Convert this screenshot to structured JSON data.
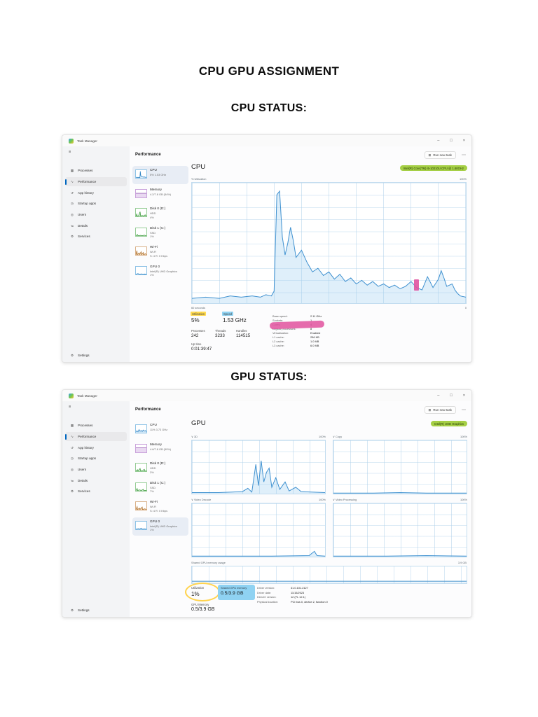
{
  "page": {
    "title": "CPU GPU ASSIGNMENT",
    "cpu_heading": "CPU STATUS:",
    "gpu_heading": "GPU STATUS:"
  },
  "colors": {
    "accent_blue": "#0067c0",
    "chart_blue": "#3f91d0",
    "highlight_green": "#a5cf45",
    "highlight_yellow": "#ffd94d",
    "highlight_blue": "#8fd2f2",
    "highlight_pink": "#e0519e"
  },
  "chrome": {
    "app": "Task Manager",
    "min": "–",
    "max": "□",
    "close": "×",
    "menu": "≡",
    "header": "Performance",
    "run_icon": "⊞",
    "run_label": "Run new task",
    "more": "⋯",
    "settings_icon": "⚙",
    "settings_label": "Settings",
    "chevron": "∨"
  },
  "nav": {
    "items": [
      {
        "icon": "▦",
        "label": "Processes"
      },
      {
        "icon": "∿",
        "label": "Performance"
      },
      {
        "icon": "↺",
        "label": "App history"
      },
      {
        "icon": "◷",
        "label": "Startup apps"
      },
      {
        "icon": "◎",
        "label": "Users"
      },
      {
        "icon": "≔",
        "label": "Details"
      },
      {
        "icon": "⚙",
        "label": "Services"
      }
    ]
  },
  "tm1": {
    "tiles": [
      {
        "name": "CPU",
        "l1": "5% 1.53 GHz",
        "l2": ""
      },
      {
        "name": "Memory",
        "l1": "4.2/7.8 GB (54%)",
        "l2": ""
      },
      {
        "name": "Disk 0 (D:)",
        "l1": "HDD",
        "l2": "4%"
      },
      {
        "name": "Disk 1 (C:)",
        "l1": "SSD",
        "l2": "1%"
      },
      {
        "name": "Wi-Fi",
        "l1": "Wi-Fi",
        "l2": "S: 4 R: 0 Kbps"
      },
      {
        "name": "GPU 0",
        "l1": "Intel(R) UHD Graphics",
        "l2": "1%"
      }
    ],
    "main": {
      "title": "CPU",
      "device": "Intel(R) Core(TM) i5-10210U CPU @ 1.60GHz",
      "y_label": "% Utilization",
      "y_max": "100%",
      "x_left": "60 seconds",
      "x_right": "0",
      "stats": {
        "utilization_label": "Utilization",
        "utilization_value": "5%",
        "speed_label": "Speed",
        "speed_value": "1.53 GHz",
        "processes_label": "Processes",
        "processes_value": "242",
        "threads_label": "Threads",
        "threads_value": "3233",
        "handles_label": "Handles",
        "handles_value": "114515",
        "uptime_label": "Up time",
        "uptime_value": "0:01:39:47"
      },
      "details": [
        {
          "label": "Base speed:",
          "value": "2.11 GHz"
        },
        {
          "label": "Sockets:",
          "value": "1"
        },
        {
          "label": "Cores:",
          "value": "4"
        },
        {
          "label": "Logical processors:",
          "value": "8"
        },
        {
          "label": "Virtualization:",
          "value": "Enabled"
        },
        {
          "label": "L1 cache:",
          "value": "256 KB"
        },
        {
          "label": "L2 cache:",
          "value": "1.0 MB"
        },
        {
          "label": "L3 cache:",
          "value": "6.0 MB"
        }
      ]
    }
  },
  "tm2": {
    "tiles": [
      {
        "name": "CPU",
        "l1": "11% 3.73 GHz",
        "l2": ""
      },
      {
        "name": "Memory",
        "l1": "4.6/7.8 GB (59%)",
        "l2": ""
      },
      {
        "name": "Disk 0 (D:)",
        "l1": "HDD",
        "l2": "3%"
      },
      {
        "name": "Disk 1 (C:)",
        "l1": "SSD",
        "l2": "7%"
      },
      {
        "name": "Wi-Fi",
        "l1": "Wi-Fi",
        "l2": "S: 4 R: 0 Kbps"
      },
      {
        "name": "GPU 0",
        "l1": "Intel(R) UHD Graphics",
        "l2": "1%"
      }
    ],
    "main": {
      "title": "GPU",
      "device": "Intel(R) UHD Graphics",
      "quadrants": [
        {
          "label": "3D",
          "scale": "100%"
        },
        {
          "label": "Copy",
          "scale": "100%"
        },
        {
          "label": "Video Decode",
          "scale": "100%"
        },
        {
          "label": "Video Processing",
          "scale": "100%"
        }
      ],
      "shared_label": "Shared GPU memory usage",
      "shared_scale": "3.9 GB",
      "stats": {
        "utilization_label": "Utilization",
        "utilization_value": "1%",
        "shared_mem_label": "Shared GPU memory",
        "shared_mem_value": "0.5/3.9 GB",
        "gpu_mem_label": "GPU Memory",
        "gpu_mem_value": "0.5/3.9 GB"
      },
      "details": [
        {
          "label": "Driver version:",
          "value": "31.0.101.2127"
        },
        {
          "label": "Driver date:",
          "value": "11/15/2023"
        },
        {
          "label": "DirectX version:",
          "value": "12 (FL 12.1)"
        },
        {
          "label": "Physical location:",
          "value": "PCI bus 0, device 2, function 0"
        }
      ]
    }
  },
  "charts": {
    "tm1_main": [
      [
        0,
        4
      ],
      [
        5,
        5
      ],
      [
        10,
        4
      ],
      [
        14,
        6
      ],
      [
        18,
        5
      ],
      [
        22,
        6
      ],
      [
        25,
        5
      ],
      [
        27,
        7
      ],
      [
        29,
        6
      ],
      [
        30,
        10
      ],
      [
        31,
        90
      ],
      [
        32,
        93
      ],
      [
        33,
        55
      ],
      [
        34,
        40
      ],
      [
        35,
        50
      ],
      [
        36,
        63
      ],
      [
        37,
        52
      ],
      [
        38,
        38
      ],
      [
        40,
        44
      ],
      [
        42,
        34
      ],
      [
        44,
        26
      ],
      [
        46,
        29
      ],
      [
        48,
        23
      ],
      [
        50,
        26
      ],
      [
        52,
        20
      ],
      [
        54,
        24
      ],
      [
        56,
        18
      ],
      [
        58,
        21
      ],
      [
        60,
        16
      ],
      [
        62,
        19
      ],
      [
        64,
        15
      ],
      [
        66,
        18
      ],
      [
        68,
        14
      ],
      [
        70,
        16
      ],
      [
        72,
        13
      ],
      [
        74,
        15
      ],
      [
        76,
        12
      ],
      [
        78,
        14
      ],
      [
        80,
        18
      ],
      [
        82,
        13
      ],
      [
        84,
        11
      ],
      [
        86,
        22
      ],
      [
        88,
        13
      ],
      [
        90,
        20
      ],
      [
        91,
        27
      ],
      [
        92,
        21
      ],
      [
        93,
        14
      ],
      [
        95,
        16
      ],
      [
        96,
        11
      ],
      [
        97,
        8
      ],
      [
        98,
        6
      ],
      [
        100,
        5
      ]
    ],
    "tm1_cpu": [
      [
        0,
        8
      ],
      [
        10,
        6
      ],
      [
        20,
        7
      ],
      [
        30,
        5
      ],
      [
        38,
        6
      ],
      [
        42,
        85
      ],
      [
        46,
        30
      ],
      [
        52,
        20
      ],
      [
        60,
        14
      ],
      [
        70,
        10
      ],
      [
        80,
        12
      ],
      [
        90,
        8
      ],
      [
        100,
        7
      ]
    ],
    "tm1_mem": [
      [
        0,
        54
      ],
      [
        100,
        54
      ]
    ],
    "tm1_disk0": [
      [
        0,
        3
      ],
      [
        8,
        30
      ],
      [
        12,
        4
      ],
      [
        25,
        8
      ],
      [
        40,
        60
      ],
      [
        45,
        6
      ],
      [
        60,
        12
      ],
      [
        75,
        5
      ],
      [
        88,
        20
      ],
      [
        100,
        4
      ]
    ],
    "tm1_disk1": [
      [
        0,
        2
      ],
      [
        15,
        18
      ],
      [
        20,
        3
      ],
      [
        45,
        8
      ],
      [
        60,
        3
      ],
      [
        80,
        10
      ],
      [
        100,
        2
      ]
    ],
    "tm1_wifi": [
      [
        0,
        2
      ],
      [
        10,
        55
      ],
      [
        13,
        3
      ],
      [
        30,
        25
      ],
      [
        33,
        2
      ],
      [
        50,
        40
      ],
      [
        53,
        3
      ],
      [
        70,
        30
      ],
      [
        73,
        2
      ],
      [
        90,
        15
      ],
      [
        100,
        2
      ]
    ],
    "tm1_gpu": [
      [
        0,
        2
      ],
      [
        20,
        12
      ],
      [
        30,
        3
      ],
      [
        55,
        8
      ],
      [
        65,
        2
      ],
      [
        85,
        6
      ],
      [
        100,
        2
      ]
    ],
    "tm2_cpu": [
      [
        0,
        10
      ],
      [
        10,
        25
      ],
      [
        20,
        12
      ],
      [
        30,
        40
      ],
      [
        40,
        18
      ],
      [
        50,
        30
      ],
      [
        60,
        15
      ],
      [
        70,
        35
      ],
      [
        80,
        20
      ],
      [
        90,
        28
      ],
      [
        100,
        14
      ]
    ],
    "tm2_mem": [
      [
        0,
        59
      ],
      [
        100,
        59
      ]
    ],
    "tm2_disk0": [
      [
        0,
        3
      ],
      [
        15,
        20
      ],
      [
        20,
        4
      ],
      [
        40,
        35
      ],
      [
        45,
        5
      ],
      [
        65,
        10
      ],
      [
        80,
        25
      ],
      [
        85,
        4
      ],
      [
        100,
        3
      ]
    ],
    "tm2_disk1": [
      [
        0,
        3
      ],
      [
        12,
        30
      ],
      [
        16,
        4
      ],
      [
        35,
        12
      ],
      [
        50,
        4
      ],
      [
        70,
        20
      ],
      [
        75,
        3
      ],
      [
        100,
        4
      ]
    ],
    "tm2_wifi": [
      [
        0,
        2
      ],
      [
        12,
        40
      ],
      [
        15,
        3
      ],
      [
        35,
        20
      ],
      [
        38,
        2
      ],
      [
        60,
        35
      ],
      [
        63,
        3
      ],
      [
        85,
        12
      ],
      [
        100,
        2
      ]
    ],
    "tm2_gpu": [
      [
        0,
        3
      ],
      [
        25,
        10
      ],
      [
        35,
        4
      ],
      [
        50,
        15
      ],
      [
        60,
        3
      ],
      [
        80,
        8
      ],
      [
        100,
        3
      ]
    ],
    "tm2_3d": [
      [
        0,
        2
      ],
      [
        20,
        2
      ],
      [
        30,
        3
      ],
      [
        38,
        4
      ],
      [
        42,
        10
      ],
      [
        45,
        3
      ],
      [
        48,
        55
      ],
      [
        50,
        15
      ],
      [
        52,
        62
      ],
      [
        54,
        22
      ],
      [
        56,
        40
      ],
      [
        58,
        48
      ],
      [
        60,
        12
      ],
      [
        63,
        30
      ],
      [
        66,
        8
      ],
      [
        70,
        22
      ],
      [
        73,
        5
      ],
      [
        78,
        12
      ],
      [
        82,
        4
      ],
      [
        90,
        3
      ],
      [
        100,
        2
      ]
    ],
    "tm2_copy": [
      [
        0,
        1
      ],
      [
        30,
        1
      ],
      [
        50,
        2
      ],
      [
        70,
        1
      ],
      [
        100,
        1
      ]
    ],
    "tm2_vdec": [
      [
        0,
        1
      ],
      [
        60,
        1
      ],
      [
        88,
        2
      ],
      [
        92,
        10
      ],
      [
        94,
        2
      ],
      [
        100,
        1
      ]
    ],
    "tm2_vproc": [
      [
        0,
        1
      ],
      [
        40,
        1
      ],
      [
        70,
        2
      ],
      [
        100,
        1
      ]
    ],
    "tm2_shared": [
      [
        0,
        12
      ],
      [
        100,
        12
      ]
    ]
  }
}
